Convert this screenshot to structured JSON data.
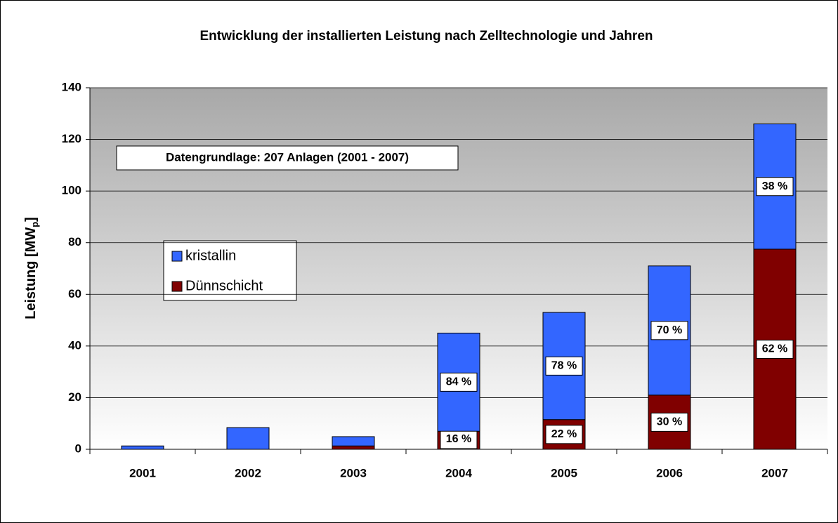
{
  "chart_data": {
    "type": "stacked_bar",
    "title": "Entwicklung der installierten Leistung nach Zelltechnologie und Jahren",
    "ylabel_parts": [
      "Leistung [MW",
      "p",
      "]"
    ],
    "annotation": "Datengrundlage: 207 Anlagen (2001 - 2007)",
    "categories": [
      "2001",
      "2002",
      "2003",
      "2004",
      "2005",
      "2006",
      "2007"
    ],
    "series": [
      {
        "name": "Dünnschicht",
        "color": "#800000",
        "values": [
          0,
          0,
          1.3,
          7,
          11.5,
          21,
          77.5
        ],
        "share_labels": [
          null,
          null,
          null,
          "16 %",
          "22 %",
          "30 %",
          "62 %"
        ]
      },
      {
        "name": "kristallin",
        "color": "#3366ff",
        "values": [
          1.3,
          8.4,
          3.6,
          38,
          41.5,
          50,
          48.5
        ],
        "share_labels": [
          null,
          null,
          null,
          "84 %",
          "78 %",
          "70 %",
          "38 %"
        ]
      }
    ],
    "ylim": [
      0,
      140
    ],
    "yticks": [
      0,
      20,
      40,
      60,
      80,
      100,
      120,
      140
    ],
    "grid": true
  }
}
